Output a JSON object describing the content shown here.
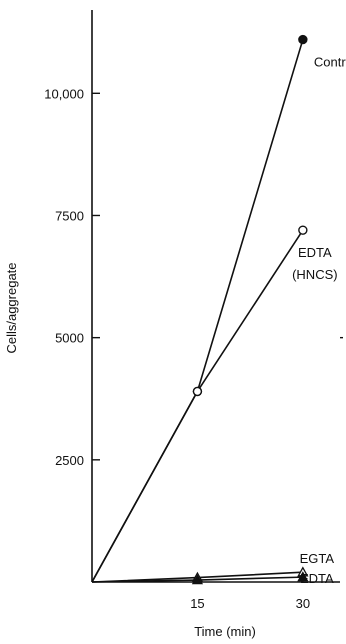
{
  "chart_data": {
    "type": "line",
    "xlabel": "Time (min)",
    "ylabel": "Cells/aggregate",
    "xlim": [
      0,
      35
    ],
    "ylim": [
      0,
      11500
    ],
    "x_ticks": [
      15,
      30
    ],
    "x_tick_labels": [
      "15",
      "30"
    ],
    "y_ticks": [
      2500,
      5000,
      7500,
      10000
    ],
    "y_tick_labels": [
      "2500",
      "5000",
      "7500",
      "10,000"
    ],
    "grid": false,
    "legend": "none",
    "series": [
      {
        "name": "Control",
        "x": [
          0,
          15,
          30
        ],
        "y": [
          0,
          3900,
          11100
        ],
        "marker": "filled-circle"
      },
      {
        "name": "EDTA (HNCS)",
        "label_lines": [
          "EDTA",
          "(HNCS)"
        ],
        "x": [
          0,
          15,
          30
        ],
        "y": [
          0,
          3900,
          7200
        ],
        "marker": "open-circle"
      },
      {
        "name": "EGTA",
        "x": [
          0,
          15,
          30
        ],
        "y": [
          0,
          90,
          200
        ],
        "marker": "open-triangle"
      },
      {
        "name": "EDTA",
        "x": [
          0,
          15,
          30
        ],
        "y": [
          0,
          40,
          100
        ],
        "marker": "filled-triangle"
      }
    ]
  }
}
